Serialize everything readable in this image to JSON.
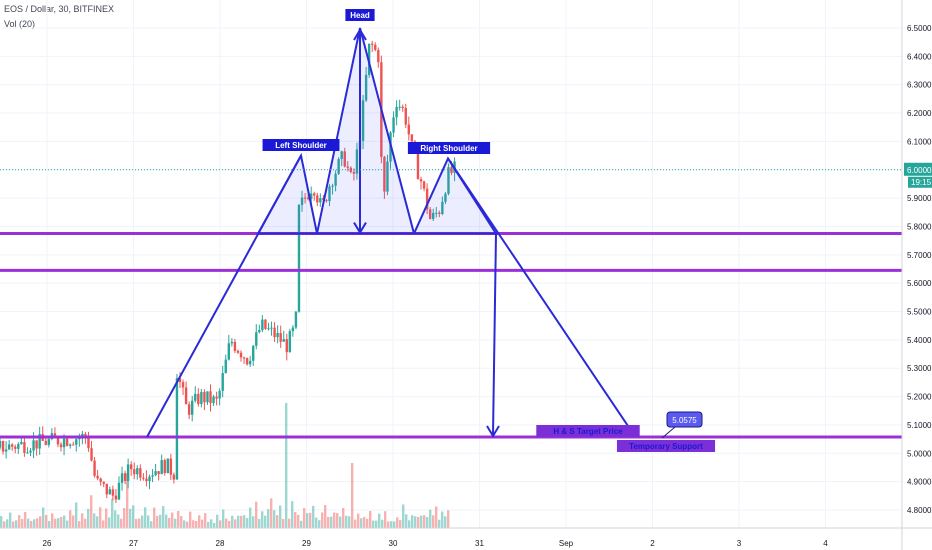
{
  "header": {
    "symbol_line": "EOS / Dollar, 30, BITFINEX",
    "volume_line": "Vol (20)"
  },
  "chart_data": {
    "type": "candlestick",
    "title": "EOS / Dollar, 30, BITFINEX",
    "indicator": "Vol (20)",
    "x_ticks": [
      "26",
      "27",
      "28",
      "29",
      "30",
      "31",
      "Sep",
      "2",
      "3",
      "4"
    ],
    "y_ticks": [
      "6.5000",
      "6.4000",
      "6.3000",
      "6.2000",
      "6.1000",
      "6.0000",
      "5.9000",
      "5.8000",
      "5.7000",
      "5.6000",
      "5.5000",
      "5.4000",
      "5.3000",
      "5.2000",
      "5.1000",
      "5.0000",
      "4.9000",
      "4.8000"
    ],
    "ylim": [
      4.74,
      6.58
    ],
    "current_price": {
      "value": "6.0000",
      "countdown": "19:15",
      "price": 6.0
    },
    "horizontal_lines": [
      {
        "price": 5.775,
        "color": "#9b30d9"
      },
      {
        "price": 5.645,
        "color": "#9b30d9"
      },
      {
        "price": 5.0575,
        "color": "#9b30d9"
      }
    ],
    "annotations": [
      {
        "text": "Head"
      },
      {
        "text": "Left Shoulder"
      },
      {
        "text": "Right Shoulder"
      },
      {
        "text": "H & S Target Price"
      },
      {
        "text": "Temporary Support"
      },
      {
        "text": "5.0575"
      }
    ],
    "price_path": [
      [
        0,
        5.02
      ],
      [
        1,
        5.04
      ],
      [
        2,
        5.06
      ],
      [
        2.2,
        4.9
      ],
      [
        2.6,
        4.85
      ],
      [
        3,
        4.95
      ],
      [
        3.4,
        4.93
      ],
      [
        3.8,
        4.96
      ],
      [
        4,
        4.93
      ],
      [
        4.05,
        5.3
      ],
      [
        4.3,
        5.15
      ],
      [
        4.6,
        5.2
      ],
      [
        5,
        5.18
      ],
      [
        5.3,
        5.4
      ],
      [
        5.7,
        5.33
      ],
      [
        6,
        5.45
      ],
      [
        6.3,
        5.42
      ],
      [
        6.6,
        5.38
      ],
      [
        6.8,
        5.45
      ],
      [
        6.85,
        5.85
      ],
      [
        7.0,
        5.9
      ],
      [
        7.2,
        5.95
      ],
      [
        7.4,
        5.86
      ],
      [
        7.6,
        5.96
      ],
      [
        7.9,
        6.05
      ],
      [
        8.1,
        5.95
      ],
      [
        8.3,
        6.15
      ],
      [
        8.5,
        6.45
      ],
      [
        8.7,
        6.4
      ],
      [
        8.8,
        5.85
      ],
      [
        8.95,
        6.1
      ],
      [
        9.1,
        6.25
      ],
      [
        9.3,
        6.2
      ],
      [
        9.5,
        6.05
      ],
      [
        9.7,
        5.95
      ],
      [
        9.9,
        5.82
      ],
      [
        10.1,
        5.86
      ],
      [
        10.3,
        5.98
      ],
      [
        10.45,
        6.0
      ]
    ],
    "volume": [
      3,
      2,
      2,
      5,
      1,
      2,
      3,
      2,
      4,
      2,
      2,
      1,
      3,
      2,
      6,
      3,
      2,
      4,
      2,
      3,
      3,
      4,
      2,
      5,
      3,
      7,
      2,
      4,
      3,
      5,
      9,
      4,
      3,
      6,
      2,
      5,
      3,
      8,
      4,
      3,
      2,
      6,
      3,
      5,
      7,
      3,
      2,
      4,
      6,
      3,
      2,
      5,
      4,
      3,
      6,
      4,
      3,
      5,
      2,
      4
    ]
  }
}
